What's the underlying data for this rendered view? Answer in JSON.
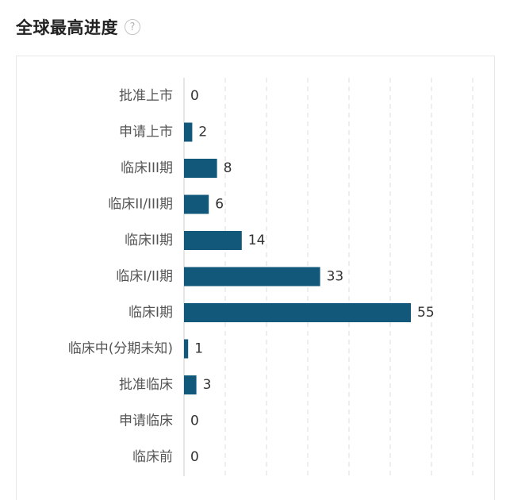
{
  "header": {
    "title": "全球最高进度",
    "help_icon": "question-circle-icon",
    "help_glyph": "?"
  },
  "colors": {
    "bar": "#11587a",
    "grid": "#dddddd",
    "axis": "#cccccc"
  },
  "chart_data": {
    "type": "bar",
    "orientation": "horizontal",
    "categories": [
      "批准上市",
      "申请上市",
      "临床III期",
      "临床II/III期",
      "临床II期",
      "临床I/II期",
      "临床I期",
      "临床中(分期未知)",
      "批准临床",
      "申请临床",
      "临床前"
    ],
    "values": [
      0,
      2,
      8,
      6,
      14,
      33,
      55,
      1,
      3,
      0,
      0
    ],
    "xlim": [
      0,
      70
    ],
    "grid": true,
    "grid_style": "dashed-vertical",
    "data_labels": true
  }
}
